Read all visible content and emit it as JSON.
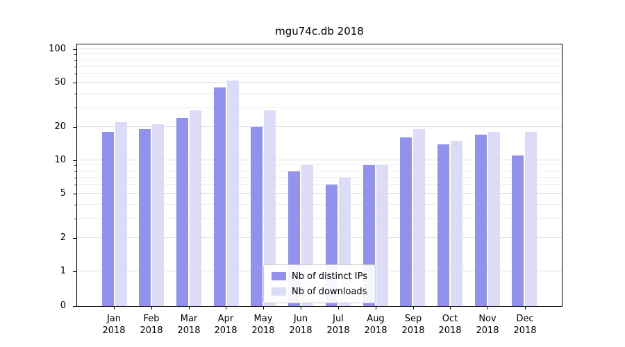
{
  "chart_data": {
    "type": "bar",
    "title": "mgu74c.db 2018",
    "scale": "symlog",
    "categories": [
      "Jan 2018",
      "Feb 2018",
      "Mar 2018",
      "Apr 2018",
      "May 2018",
      "Jun 2018",
      "Jul 2018",
      "Aug 2018",
      "Sep 2018",
      "Oct 2018",
      "Nov 2018",
      "Dec 2018"
    ],
    "series": [
      {
        "name": "Nb of distinct IPs",
        "color": "#9292ee",
        "values": [
          18,
          19,
          24,
          45,
          20,
          8,
          6,
          9,
          16,
          14,
          17,
          11
        ]
      },
      {
        "name": "Nb of downloads",
        "color": "#dcdcf8",
        "values": [
          22,
          21,
          28,
          52,
          28,
          9,
          7,
          9,
          19,
          15,
          18,
          18
        ]
      }
    ],
    "y_ticks": [
      0,
      1,
      2,
      5,
      10,
      20,
      50,
      100
    ],
    "y_minor_ticks": [
      3,
      4,
      6,
      7,
      8,
      9,
      30,
      40,
      60,
      70,
      80,
      90
    ],
    "ylim": [
      0,
      100
    ],
    "grid": true,
    "legend_position": "bottom-center",
    "colors": {
      "grid_major": "#dcdcdc",
      "grid_minor": "#ececec",
      "axis": "#000000",
      "legend_border": "#cccccc",
      "background": "#ffffff"
    }
  }
}
